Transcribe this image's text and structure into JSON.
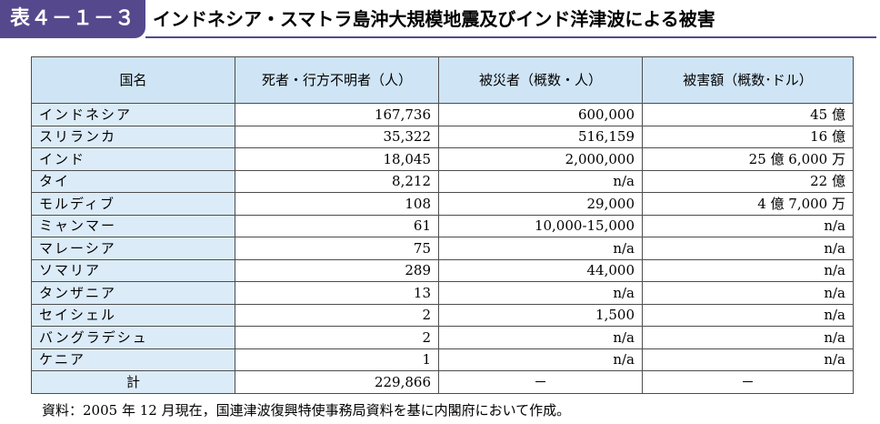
{
  "title": {
    "tag": "表４－１－３",
    "text": "インドネシア・スマトラ島沖大規模地震及びインド洋津波による被害"
  },
  "table": {
    "headers": {
      "country": "国名",
      "deaths": "死者・行方不明者（人）",
      "victims": "被災者（概数・人）",
      "damage": "被害額（概数･ドル）"
    },
    "rows": [
      {
        "country": "インドネシア",
        "deaths": "167,736",
        "victims": "600,000",
        "damage": "45 億"
      },
      {
        "country": "スリランカ",
        "deaths": "35,322",
        "victims": "516,159",
        "damage": "16 億"
      },
      {
        "country": "インド",
        "deaths": "18,045",
        "victims": "2,000,000",
        "damage": "25 億 6,000 万"
      },
      {
        "country": "タイ",
        "deaths": "8,212",
        "victims": "n/a",
        "damage": "22 億"
      },
      {
        "country": "モルディブ",
        "deaths": "108",
        "victims": "29,000",
        "damage": "4 億 7,000 万"
      },
      {
        "country": "ミャンマー",
        "deaths": "61",
        "victims": "10,000-15,000",
        "damage": "n/a"
      },
      {
        "country": "マレーシア",
        "deaths": "75",
        "victims": "n/a",
        "damage": "n/a"
      },
      {
        "country": "ソマリア",
        "deaths": "289",
        "victims": "44,000",
        "damage": "n/a"
      },
      {
        "country": "タンザニア",
        "deaths": "13",
        "victims": "n/a",
        "damage": "n/a"
      },
      {
        "country": "セイシェル",
        "deaths": "2",
        "victims": "1,500",
        "damage": "n/a"
      },
      {
        "country": "バングラデシュ",
        "deaths": "2",
        "victims": "n/a",
        "damage": "n/a"
      },
      {
        "country": "ケニア",
        "deaths": "1",
        "victims": "n/a",
        "damage": "n/a"
      }
    ],
    "total": {
      "country": "計",
      "deaths": "229,866",
      "victims": "－",
      "damage": "－"
    }
  },
  "source": "資料：2005 年 12 月現在，国連津波復興特使事務局資料を基に内閣府において作成。"
}
